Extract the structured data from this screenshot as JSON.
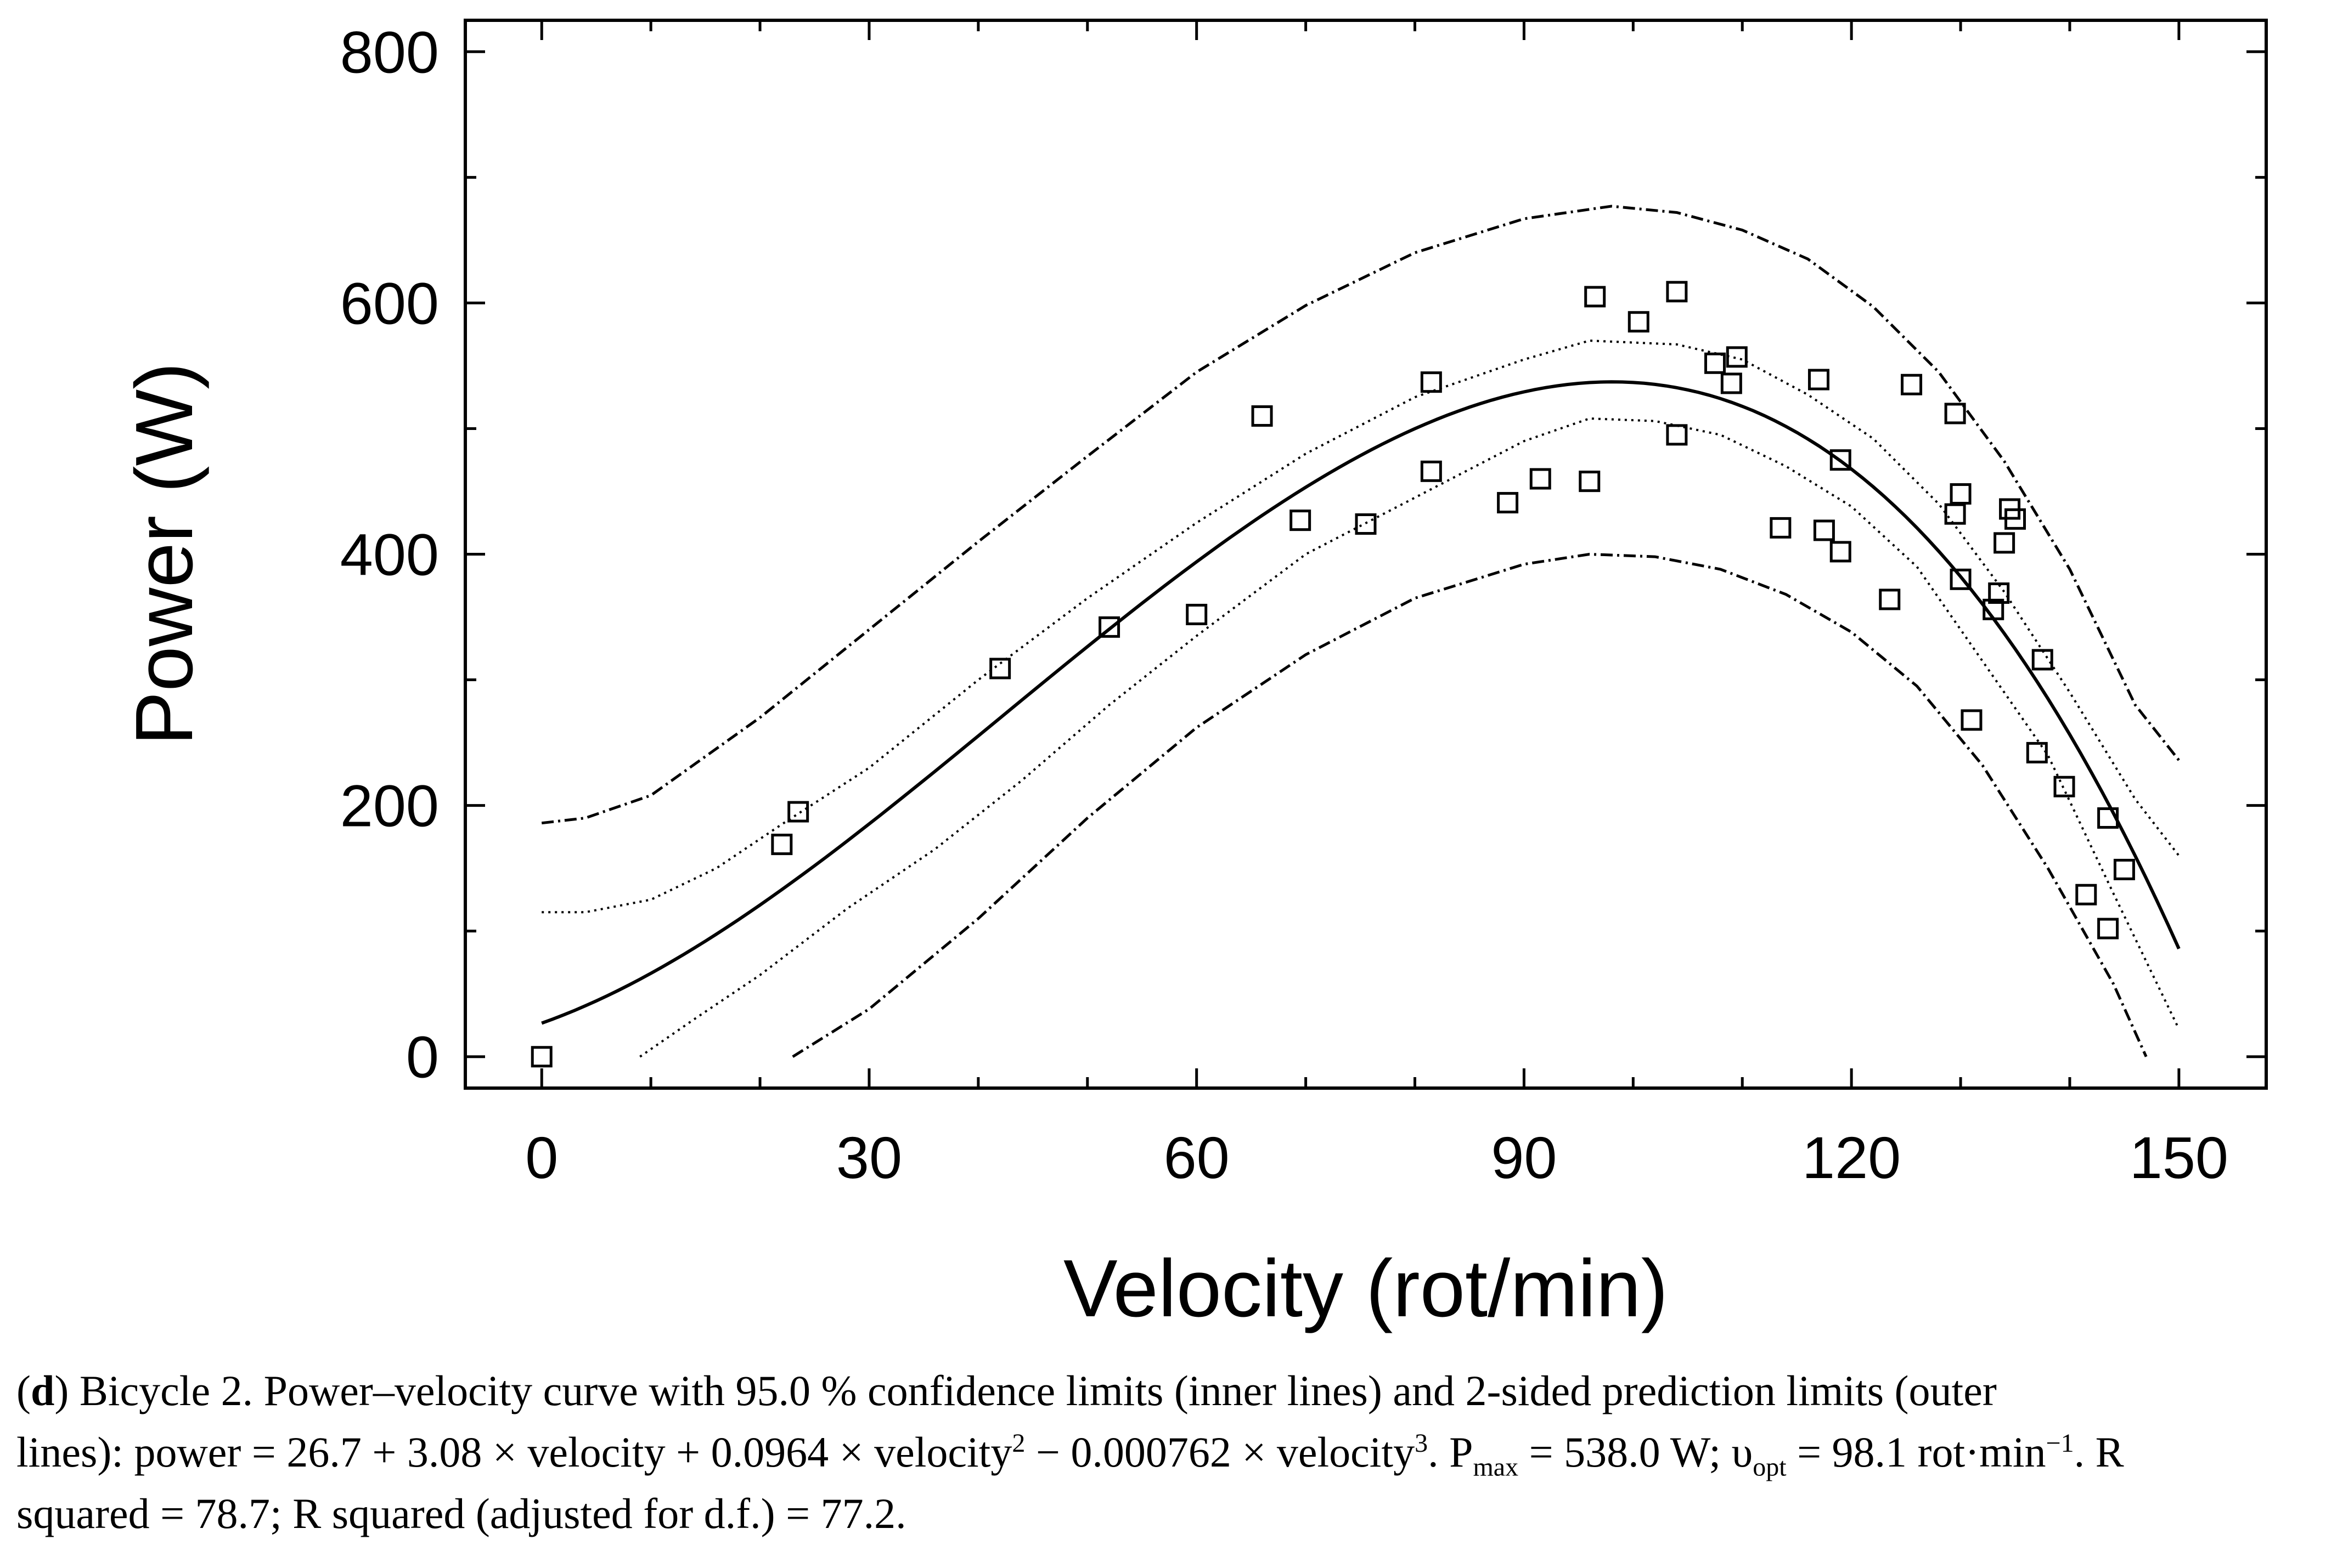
{
  "chart_data": {
    "type": "scatter",
    "xlabel": "Velocity (rot/min)",
    "ylabel": "Power (W)",
    "xlim": [
      -7,
      158
    ],
    "ylim": [
      -25,
      825
    ],
    "xticks": [
      0,
      30,
      60,
      90,
      120,
      150
    ],
    "yticks": [
      0,
      200,
      400,
      600,
      800
    ],
    "grid": false,
    "fit": {
      "name": "power = 26.7 + 3.08 × velocity + 0.0964 × velocity² − 0.000762 × velocity³",
      "coefficients": [
        26.7,
        3.08,
        0.0964,
        -0.000762
      ],
      "x_range": [
        0,
        150
      ]
    },
    "confidence_limits_95": {
      "upper": [
        [
          0,
          115
        ],
        [
          4,
          115
        ],
        [
          10,
          125
        ],
        [
          16,
          150
        ],
        [
          22,
          185
        ],
        [
          30,
          230
        ],
        [
          40,
          300
        ],
        [
          50,
          365
        ],
        [
          60,
          425
        ],
        [
          70,
          480
        ],
        [
          80,
          525
        ],
        [
          90,
          555
        ],
        [
          96,
          570
        ],
        [
          104,
          567
        ],
        [
          110,
          555
        ],
        [
          116,
          527
        ],
        [
          122,
          492
        ],
        [
          128,
          440
        ],
        [
          134,
          370
        ],
        [
          140,
          290
        ],
        [
          146,
          205
        ],
        [
          150,
          160
        ]
      ],
      "lower": [
        [
          9,
          0
        ],
        [
          14,
          30
        ],
        [
          20,
          65
        ],
        [
          28,
          118
        ],
        [
          36,
          165
        ],
        [
          44,
          220
        ],
        [
          52,
          280
        ],
        [
          60,
          335
        ],
        [
          70,
          400
        ],
        [
          80,
          445
        ],
        [
          90,
          490
        ],
        [
          96,
          508
        ],
        [
          102,
          506
        ],
        [
          108,
          495
        ],
        [
          114,
          470
        ],
        [
          120,
          438
        ],
        [
          126,
          390
        ],
        [
          132,
          315
        ],
        [
          138,
          240
        ],
        [
          144,
          130
        ],
        [
          150,
          22
        ]
      ]
    },
    "prediction_limits_2sided": {
      "upper": [
        [
          0,
          186
        ],
        [
          4,
          190
        ],
        [
          10,
          208
        ],
        [
          20,
          270
        ],
        [
          30,
          340
        ],
        [
          40,
          410
        ],
        [
          50,
          478
        ],
        [
          60,
          545
        ],
        [
          70,
          598
        ],
        [
          80,
          640
        ],
        [
          90,
          667
        ],
        [
          98,
          677
        ],
        [
          104,
          672
        ],
        [
          110,
          658
        ],
        [
          116,
          635
        ],
        [
          122,
          597
        ],
        [
          128,
          545
        ],
        [
          134,
          474
        ],
        [
          140,
          388
        ],
        [
          146,
          280
        ],
        [
          150,
          236
        ]
      ],
      "lower": [
        [
          23,
          0
        ],
        [
          30,
          38
        ],
        [
          40,
          110
        ],
        [
          50,
          190
        ],
        [
          60,
          262
        ],
        [
          70,
          320
        ],
        [
          80,
          365
        ],
        [
          90,
          392
        ],
        [
          96,
          400
        ],
        [
          102,
          398
        ],
        [
          108,
          388
        ],
        [
          114,
          368
        ],
        [
          120,
          338
        ],
        [
          126,
          295
        ],
        [
          132,
          232
        ],
        [
          138,
          150
        ],
        [
          144,
          58
        ],
        [
          147,
          0
        ]
      ]
    },
    "points": [
      [
        0,
        0
      ],
      [
        22,
        169
      ],
      [
        23.5,
        195
      ],
      [
        42,
        309
      ],
      [
        52,
        342
      ],
      [
        60,
        352
      ],
      [
        66,
        510
      ],
      [
        69.5,
        427
      ],
      [
        75.5,
        424
      ],
      [
        81.5,
        466
      ],
      [
        81.5,
        537
      ],
      [
        88.5,
        441
      ],
      [
        91.5,
        460
      ],
      [
        96,
        458
      ],
      [
        96.5,
        605
      ],
      [
        100.5,
        585
      ],
      [
        104,
        495
      ],
      [
        104,
        609
      ],
      [
        107.5,
        552
      ],
      [
        109,
        536
      ],
      [
        109.5,
        557
      ],
      [
        113.5,
        421
      ],
      [
        117,
        539
      ],
      [
        117.5,
        419
      ],
      [
        119,
        402
      ],
      [
        119,
        475
      ],
      [
        123.5,
        364
      ],
      [
        125.5,
        535
      ],
      [
        129.5,
        512
      ],
      [
        129.5,
        432
      ],
      [
        130,
        448
      ],
      [
        130,
        380
      ],
      [
        131,
        268
      ],
      [
        133,
        356
      ],
      [
        133.5,
        369
      ],
      [
        134,
        409
      ],
      [
        134.5,
        436
      ],
      [
        135,
        428
      ],
      [
        137,
        242
      ],
      [
        137.5,
        316
      ],
      [
        139.5,
        215
      ],
      [
        141.5,
        129
      ],
      [
        143.5,
        102
      ],
      [
        143.5,
        190
      ],
      [
        145,
        149
      ]
    ]
  },
  "caption": {
    "label": "d",
    "line1_text": " Bicycle 2. Power–velocity curve with 95.0 % confidence limits (inner lines) and 2-sided prediction limits (outer",
    "line2_text": "lines): power = 26.7 + 3.08 × velocity + 0.0964 × velocity",
    "sup2": "2",
    "mid_text": " − 0.000762 × velocity",
    "sup3": "3",
    "pmax_p": ". P",
    "pmax_sub": "max",
    "pmax_value": " = 538.0 W; υ",
    "vopt_sub": "opt",
    "vopt_value": " = 98.1 rot·min",
    "vopt_sup": "−1",
    "r_start": ". R",
    "line3_text": "squared = 78.7; R squared (adjusted for d.f.) = 77.2."
  }
}
